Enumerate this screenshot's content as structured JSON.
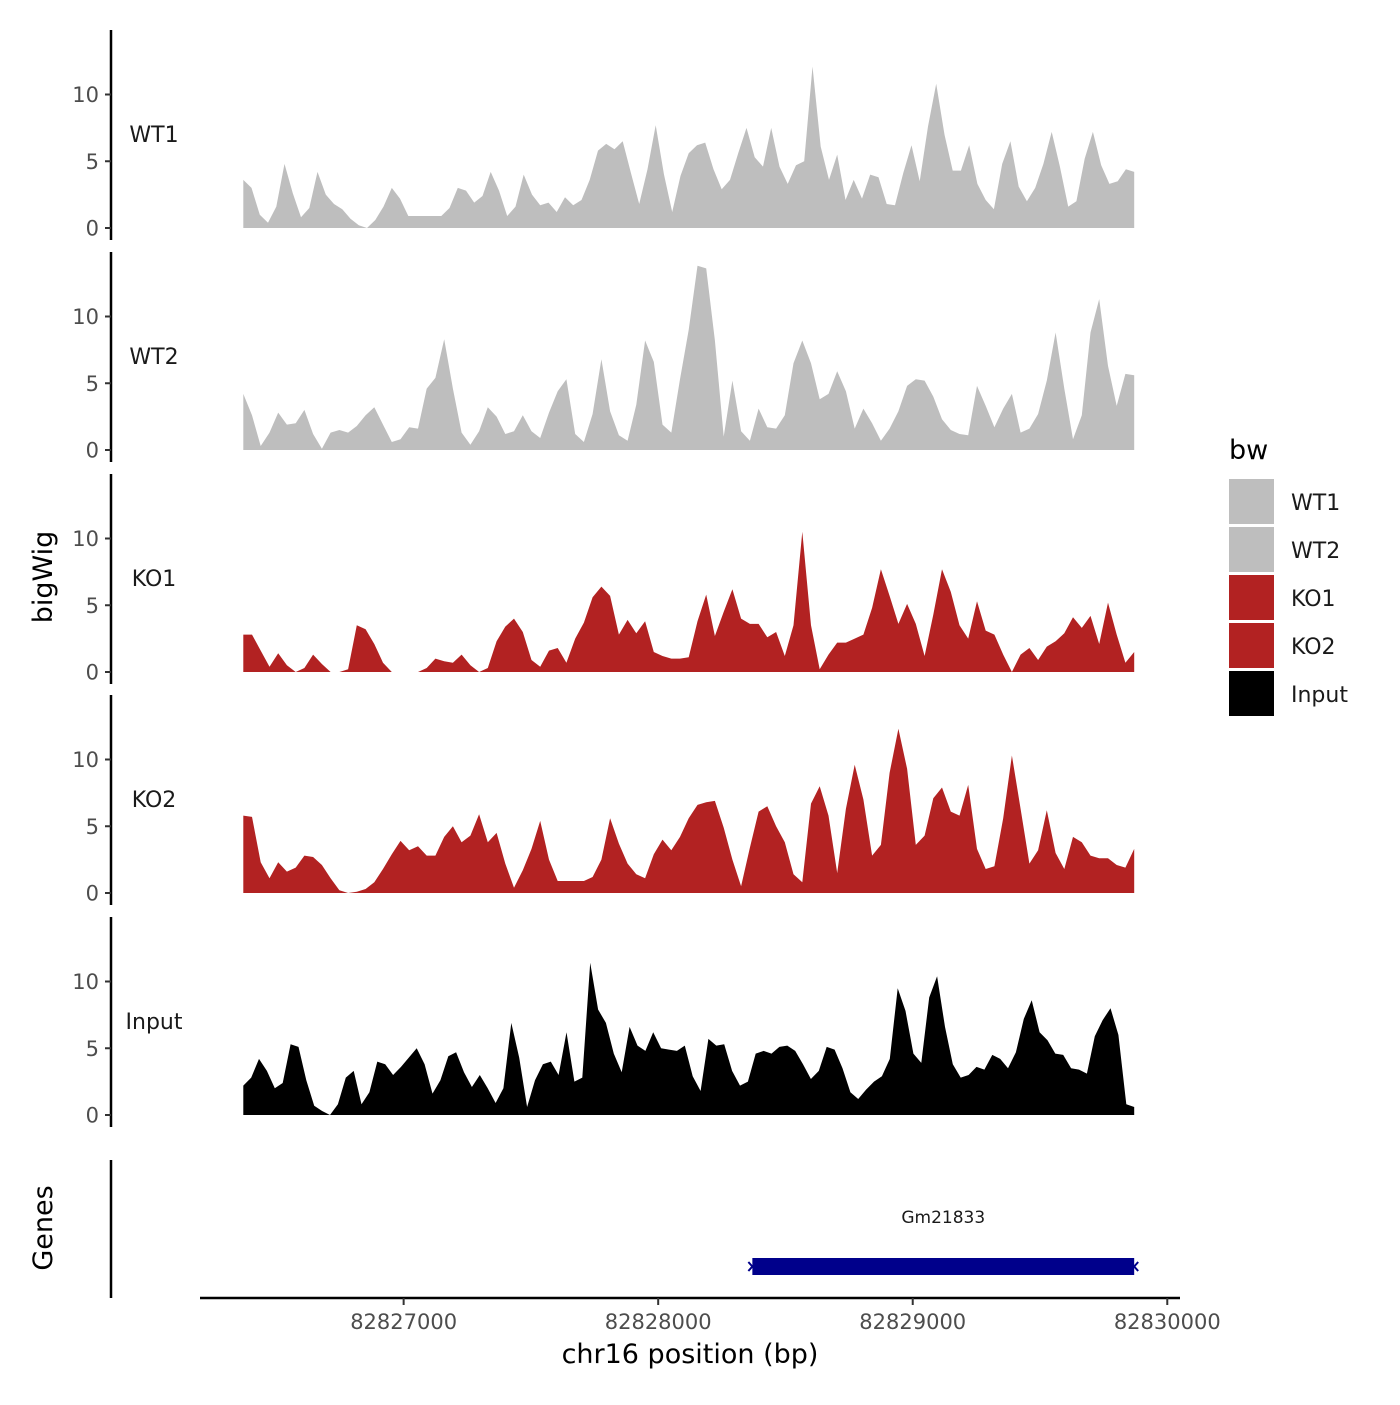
{
  "chart_data": {
    "type": "area",
    "title": "",
    "ylabel": "bigWig",
    "genes_label": "Genes",
    "xlabel": "chr16 position (bp)",
    "xlim": [
      82826200,
      82830050
    ],
    "data_range": [
      82826370,
      82829870
    ],
    "ylim": [
      0,
      14
    ],
    "x_ticks": [
      82827000,
      82828000,
      82829000,
      82830000
    ],
    "x_tick_labels": [
      "82827000",
      "82828000",
      "82829000",
      "82830000"
    ],
    "y_ticks": [
      0,
      5,
      10
    ],
    "y_tick_labels": [
      "0",
      "5",
      "10"
    ],
    "colors": {
      "WT1": "#bebebe",
      "WT2": "#bebebe",
      "KO1": "#b22222",
      "KO2": "#b22222",
      "Input": "#000000",
      "gene": "#00008b"
    },
    "series": [
      {
        "name": "WT1",
        "values": [
          3.6,
          3.0,
          1.0,
          0.4,
          1.6,
          4.8,
          2.6,
          0.8,
          1.5,
          4.2,
          2.5,
          1.8,
          1.4,
          0.7,
          0.2,
          0.0,
          0.6,
          1.6,
          3.0,
          2.2,
          0.9,
          0.9,
          0.9,
          0.9,
          0.9,
          1.5,
          3.0,
          2.8,
          1.9,
          2.4,
          4.2,
          2.8,
          0.9,
          1.6,
          4.0,
          2.5,
          1.7,
          1.9,
          1.2,
          2.3,
          1.7,
          2.1,
          3.6,
          5.8,
          6.3,
          5.9,
          6.5,
          4.1,
          1.8,
          4.4,
          7.7,
          4.0,
          1.2,
          3.9,
          5.6,
          6.2,
          6.4,
          4.4,
          2.9,
          3.6,
          5.6,
          7.5,
          5.3,
          4.6,
          7.5,
          4.6,
          3.3,
          4.7,
          5.0,
          12.1,
          6.1,
          3.6,
          5.5,
          2.1,
          3.6,
          2.2,
          4.0,
          3.8,
          1.8,
          1.7,
          4.1,
          6.2,
          3.5,
          7.6,
          10.8,
          7.0,
          4.3,
          4.3,
          6.2,
          3.3,
          2.1,
          1.4,
          4.8,
          6.5,
          3.1,
          2.0,
          3.0,
          4.8,
          7.2,
          4.6,
          1.6,
          2.0,
          5.2,
          7.2,
          4.7,
          3.3,
          3.5,
          4.4,
          4.2
        ],
        "x_start": 82826370,
        "x_end": 82829870
      },
      {
        "name": "WT2",
        "values": [
          4.2,
          2.6,
          0.3,
          1.3,
          2.8,
          1.9,
          2.0,
          3.0,
          1.2,
          0.1,
          1.3,
          1.5,
          1.3,
          1.8,
          2.6,
          3.2,
          1.9,
          0.6,
          0.8,
          1.7,
          1.6,
          4.6,
          5.4,
          8.3,
          4.6,
          1.3,
          0.4,
          1.4,
          3.2,
          2.5,
          1.2,
          1.4,
          2.6,
          1.4,
          0.9,
          2.8,
          4.4,
          5.3,
          1.2,
          0.6,
          2.7,
          6.8,
          2.9,
          1.1,
          0.7,
          3.4,
          8.2,
          6.6,
          1.9,
          1.3,
          5.3,
          9.0,
          13.8,
          13.6,
          8.2,
          1.0,
          5.2,
          1.4,
          0.7,
          3.1,
          1.7,
          1.6,
          2.6,
          6.5,
          8.2,
          6.5,
          3.8,
          4.2,
          5.9,
          4.4,
          1.6,
          3.1,
          2.0,
          0.7,
          1.6,
          2.9,
          4.8,
          5.3,
          5.2,
          4.0,
          2.3,
          1.5,
          1.2,
          1.1,
          4.8,
          3.3,
          1.7,
          3.1,
          4.2,
          1.3,
          1.6,
          2.7,
          5.2,
          8.8,
          4.6,
          0.8,
          2.6,
          8.8,
          11.3,
          6.3,
          3.3,
          5.7,
          5.6
        ],
        "x_start": 82826370,
        "x_end": 82829870
      },
      {
        "name": "KO1",
        "values": [
          2.8,
          2.8,
          1.6,
          0.4,
          1.4,
          0.5,
          0.0,
          0.3,
          1.3,
          0.6,
          0.0,
          0.0,
          0.2,
          3.5,
          3.2,
          2.1,
          0.7,
          0.0,
          0.0,
          0.0,
          0.0,
          0.3,
          1.0,
          0.8,
          0.7,
          1.3,
          0.5,
          0.0,
          0.3,
          2.3,
          3.4,
          4.0,
          3.0,
          0.9,
          0.4,
          1.6,
          1.8,
          0.7,
          2.5,
          3.7,
          5.6,
          6.4,
          5.7,
          2.8,
          3.9,
          2.9,
          3.8,
          1.5,
          1.2,
          1.0,
          1.0,
          1.1,
          3.8,
          5.8,
          2.7,
          4.5,
          6.2,
          4.0,
          3.6,
          3.6,
          2.6,
          3.0,
          1.2,
          3.5,
          10.5,
          3.5,
          0.2,
          1.3,
          2.2,
          2.2,
          2.5,
          2.8,
          4.8,
          7.7,
          5.7,
          3.6,
          5.1,
          3.6,
          1.2,
          4.3,
          7.7,
          6.0,
          3.5,
          2.5,
          5.3,
          3.1,
          2.8,
          1.3,
          0.0,
          1.3,
          1.8,
          0.9,
          1.9,
          2.3,
          2.9,
          4.1,
          3.3,
          4.2,
          2.1,
          5.2,
          2.8,
          0.7,
          1.5
        ],
        "x_start": 82826370,
        "x_end": 82829870
      },
      {
        "name": "KO2",
        "values": [
          5.8,
          5.7,
          2.3,
          1.1,
          2.3,
          1.6,
          1.9,
          2.8,
          2.7,
          2.1,
          1.1,
          0.2,
          0.0,
          0.1,
          0.3,
          0.8,
          1.8,
          2.9,
          3.9,
          3.2,
          3.5,
          2.8,
          2.8,
          4.2,
          5.0,
          3.8,
          4.3,
          5.9,
          3.8,
          4.5,
          2.2,
          0.4,
          1.7,
          3.3,
          5.4,
          2.5,
          0.9,
          0.9,
          0.9,
          0.9,
          1.2,
          2.5,
          5.6,
          3.7,
          2.2,
          1.4,
          1.1,
          2.9,
          4.0,
          3.2,
          4.2,
          5.6,
          6.6,
          6.8,
          6.9,
          4.9,
          2.5,
          0.5,
          3.4,
          6.1,
          6.5,
          5.0,
          3.8,
          1.4,
          0.8,
          6.7,
          8.0,
          5.8,
          1.5,
          6.3,
          9.6,
          7.0,
          2.8,
          3.6,
          9.0,
          12.3,
          9.3,
          3.6,
          4.3,
          7.1,
          7.9,
          6.1,
          5.8,
          8.1,
          3.3,
          1.8,
          2.0,
          5.6,
          10.3,
          6.3,
          2.2,
          3.2,
          6.2,
          3.0,
          1.8,
          4.2,
          3.8,
          2.8,
          2.6,
          2.6,
          2.1,
          1.9,
          3.3
        ],
        "x_start": 82826370,
        "x_end": 82829870
      },
      {
        "name": "Input",
        "values": [
          2.2,
          2.8,
          4.2,
          3.3,
          2.0,
          2.4,
          5.3,
          5.1,
          2.6,
          0.7,
          0.3,
          0.0,
          0.8,
          2.8,
          3.3,
          0.8,
          1.7,
          4.0,
          3.8,
          3.0,
          3.6,
          4.3,
          5.0,
          3.8,
          1.6,
          2.6,
          4.4,
          4.7,
          3.2,
          2.1,
          3.0,
          2.0,
          0.9,
          2.0,
          6.9,
          4.3,
          0.6,
          2.6,
          3.8,
          4.0,
          3.0,
          6.2,
          2.5,
          2.8,
          11.4,
          7.9,
          6.9,
          4.6,
          3.2,
          6.6,
          5.2,
          4.8,
          6.2,
          5.0,
          4.9,
          4.8,
          5.2,
          2.9,
          1.8,
          5.7,
          5.2,
          5.3,
          3.3,
          2.2,
          2.5,
          4.6,
          4.8,
          4.6,
          5.1,
          5.2,
          4.8,
          3.8,
          2.7,
          3.3,
          5.1,
          4.9,
          3.5,
          1.7,
          1.2,
          1.9,
          2.5,
          2.9,
          4.2,
          9.5,
          7.8,
          4.6,
          3.9,
          8.8,
          10.4,
          6.6,
          3.8,
          2.8,
          3.0,
          3.6,
          3.4,
          4.5,
          4.2,
          3.5,
          4.7,
          7.2,
          8.6,
          6.2,
          5.6,
          4.6,
          4.5,
          3.5,
          3.4,
          3.1,
          5.9,
          7.1,
          8.0,
          6.0,
          0.8,
          0.6
        ],
        "x_start": 82826370,
        "x_end": 82829870
      }
    ],
    "genes": [
      {
        "name": "Gm21833",
        "start": 82828370,
        "end": 82829870,
        "strand": "-"
      }
    ],
    "legend": {
      "title": "bw",
      "entries": [
        "WT1",
        "WT2",
        "KO1",
        "KO2",
        "Input"
      ],
      "position": "right"
    }
  }
}
